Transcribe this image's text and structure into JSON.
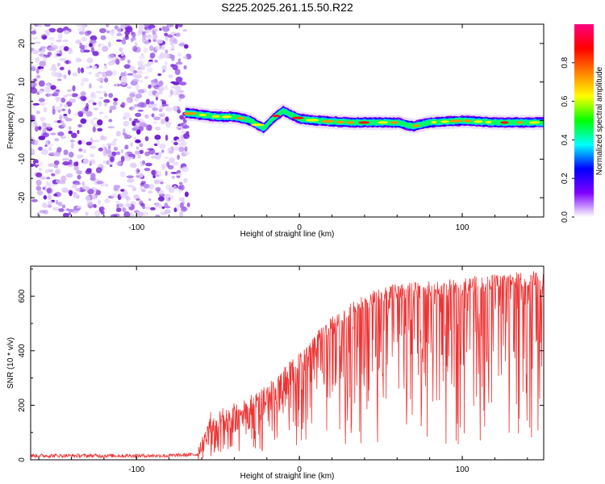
{
  "title": "S225.2025.261.15.50.R22",
  "chart_data": [
    {
      "type": "heatmap",
      "xlabel": "Height of straight line (km)",
      "ylabel": "Frequency (Hz)",
      "xlim": [
        -165,
        150
      ],
      "ylim": [
        -25,
        25
      ],
      "xticks": [
        -100,
        0,
        100
      ],
      "yticks": [
        -20,
        -10,
        0,
        10,
        20
      ],
      "colorbar": {
        "label": "Normalized spectral amplitude",
        "range": [
          0,
          1
        ],
        "ticks": [
          0.0,
          0.2,
          0.4,
          0.6,
          0.8
        ],
        "colors": [
          "#ffffff",
          "#7f00ff",
          "#0000ff",
          "#00ffff",
          "#00ff00",
          "#ffff00",
          "#ff8000",
          "#ff0000",
          "#ff0080"
        ]
      },
      "noise_region_x": [
        -165,
        -70
      ],
      "ridge": [
        {
          "x": -70,
          "freq": 2.0
        },
        {
          "x": -60,
          "freq": 1.5
        },
        {
          "x": -50,
          "freq": 1.0
        },
        {
          "x": -40,
          "freq": 1.0
        },
        {
          "x": -30,
          "freq": 0.0
        },
        {
          "x": -22,
          "freq": -2.0
        },
        {
          "x": -15,
          "freq": 1.0
        },
        {
          "x": -10,
          "freq": 2.5
        },
        {
          "x": -5,
          "freq": 1.5
        },
        {
          "x": 0,
          "freq": 0.5
        },
        {
          "x": 10,
          "freq": 0.0
        },
        {
          "x": 30,
          "freq": -0.5
        },
        {
          "x": 60,
          "freq": -0.5
        },
        {
          "x": 70,
          "freq": -1.5
        },
        {
          "x": 80,
          "freq": -0.5
        },
        {
          "x": 100,
          "freq": 0.0
        },
        {
          "x": 120,
          "freq": -0.5
        },
        {
          "x": 150,
          "freq": -0.5
        }
      ]
    },
    {
      "type": "line",
      "xlabel": "Height of straight line (km)",
      "ylabel": "SNR (10 * v/v)",
      "xlim": [
        -165,
        150
      ],
      "ylim": [
        0,
        710
      ],
      "xticks": [
        -100,
        0,
        100
      ],
      "yticks": [
        0,
        200,
        400,
        600
      ],
      "color": "#ee3333",
      "series": [
        {
          "name": "SNR",
          "x": [
            -165,
            -140,
            -120,
            -100,
            -80,
            -62,
            -55,
            -45,
            -30,
            -20,
            -10,
            0,
            10,
            20,
            30,
            40,
            50,
            60,
            70,
            80,
            90,
            100,
            110,
            120,
            130,
            140,
            150
          ],
          "values": [
            15,
            15,
            15,
            15,
            15,
            20,
            140,
            160,
            200,
            240,
            300,
            360,
            430,
            490,
            540,
            575,
            600,
            610,
            615,
            620,
            625,
            630,
            640,
            645,
            650,
            655,
            660
          ]
        }
      ]
    }
  ]
}
